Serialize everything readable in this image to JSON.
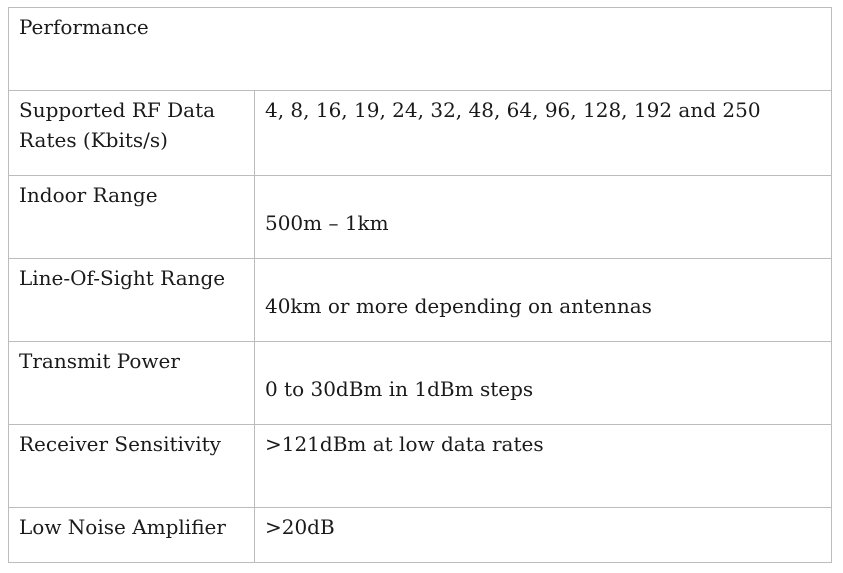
{
  "table": {
    "header": "Performance",
    "rows": [
      {
        "label": "Supported RF Data Rates (Kbits/s)",
        "value": "4, 8, 16, 19, 24, 32, 48, 64, 96, 128, 192 and 250"
      },
      {
        "label": "Indoor Range",
        "value": "500m – 1km"
      },
      {
        "label": "Line-Of-Sight Range",
        "value": "40km or more depending on antennas"
      },
      {
        "label": "Transmit Power",
        "value": "0 to 30dBm in 1dBm steps"
      },
      {
        "label": "Receiver Sensitivity",
        "value": ">121dBm at low data rates"
      },
      {
        "label": "Low Noise Amplifier",
        "value": ">20dB"
      }
    ]
  }
}
